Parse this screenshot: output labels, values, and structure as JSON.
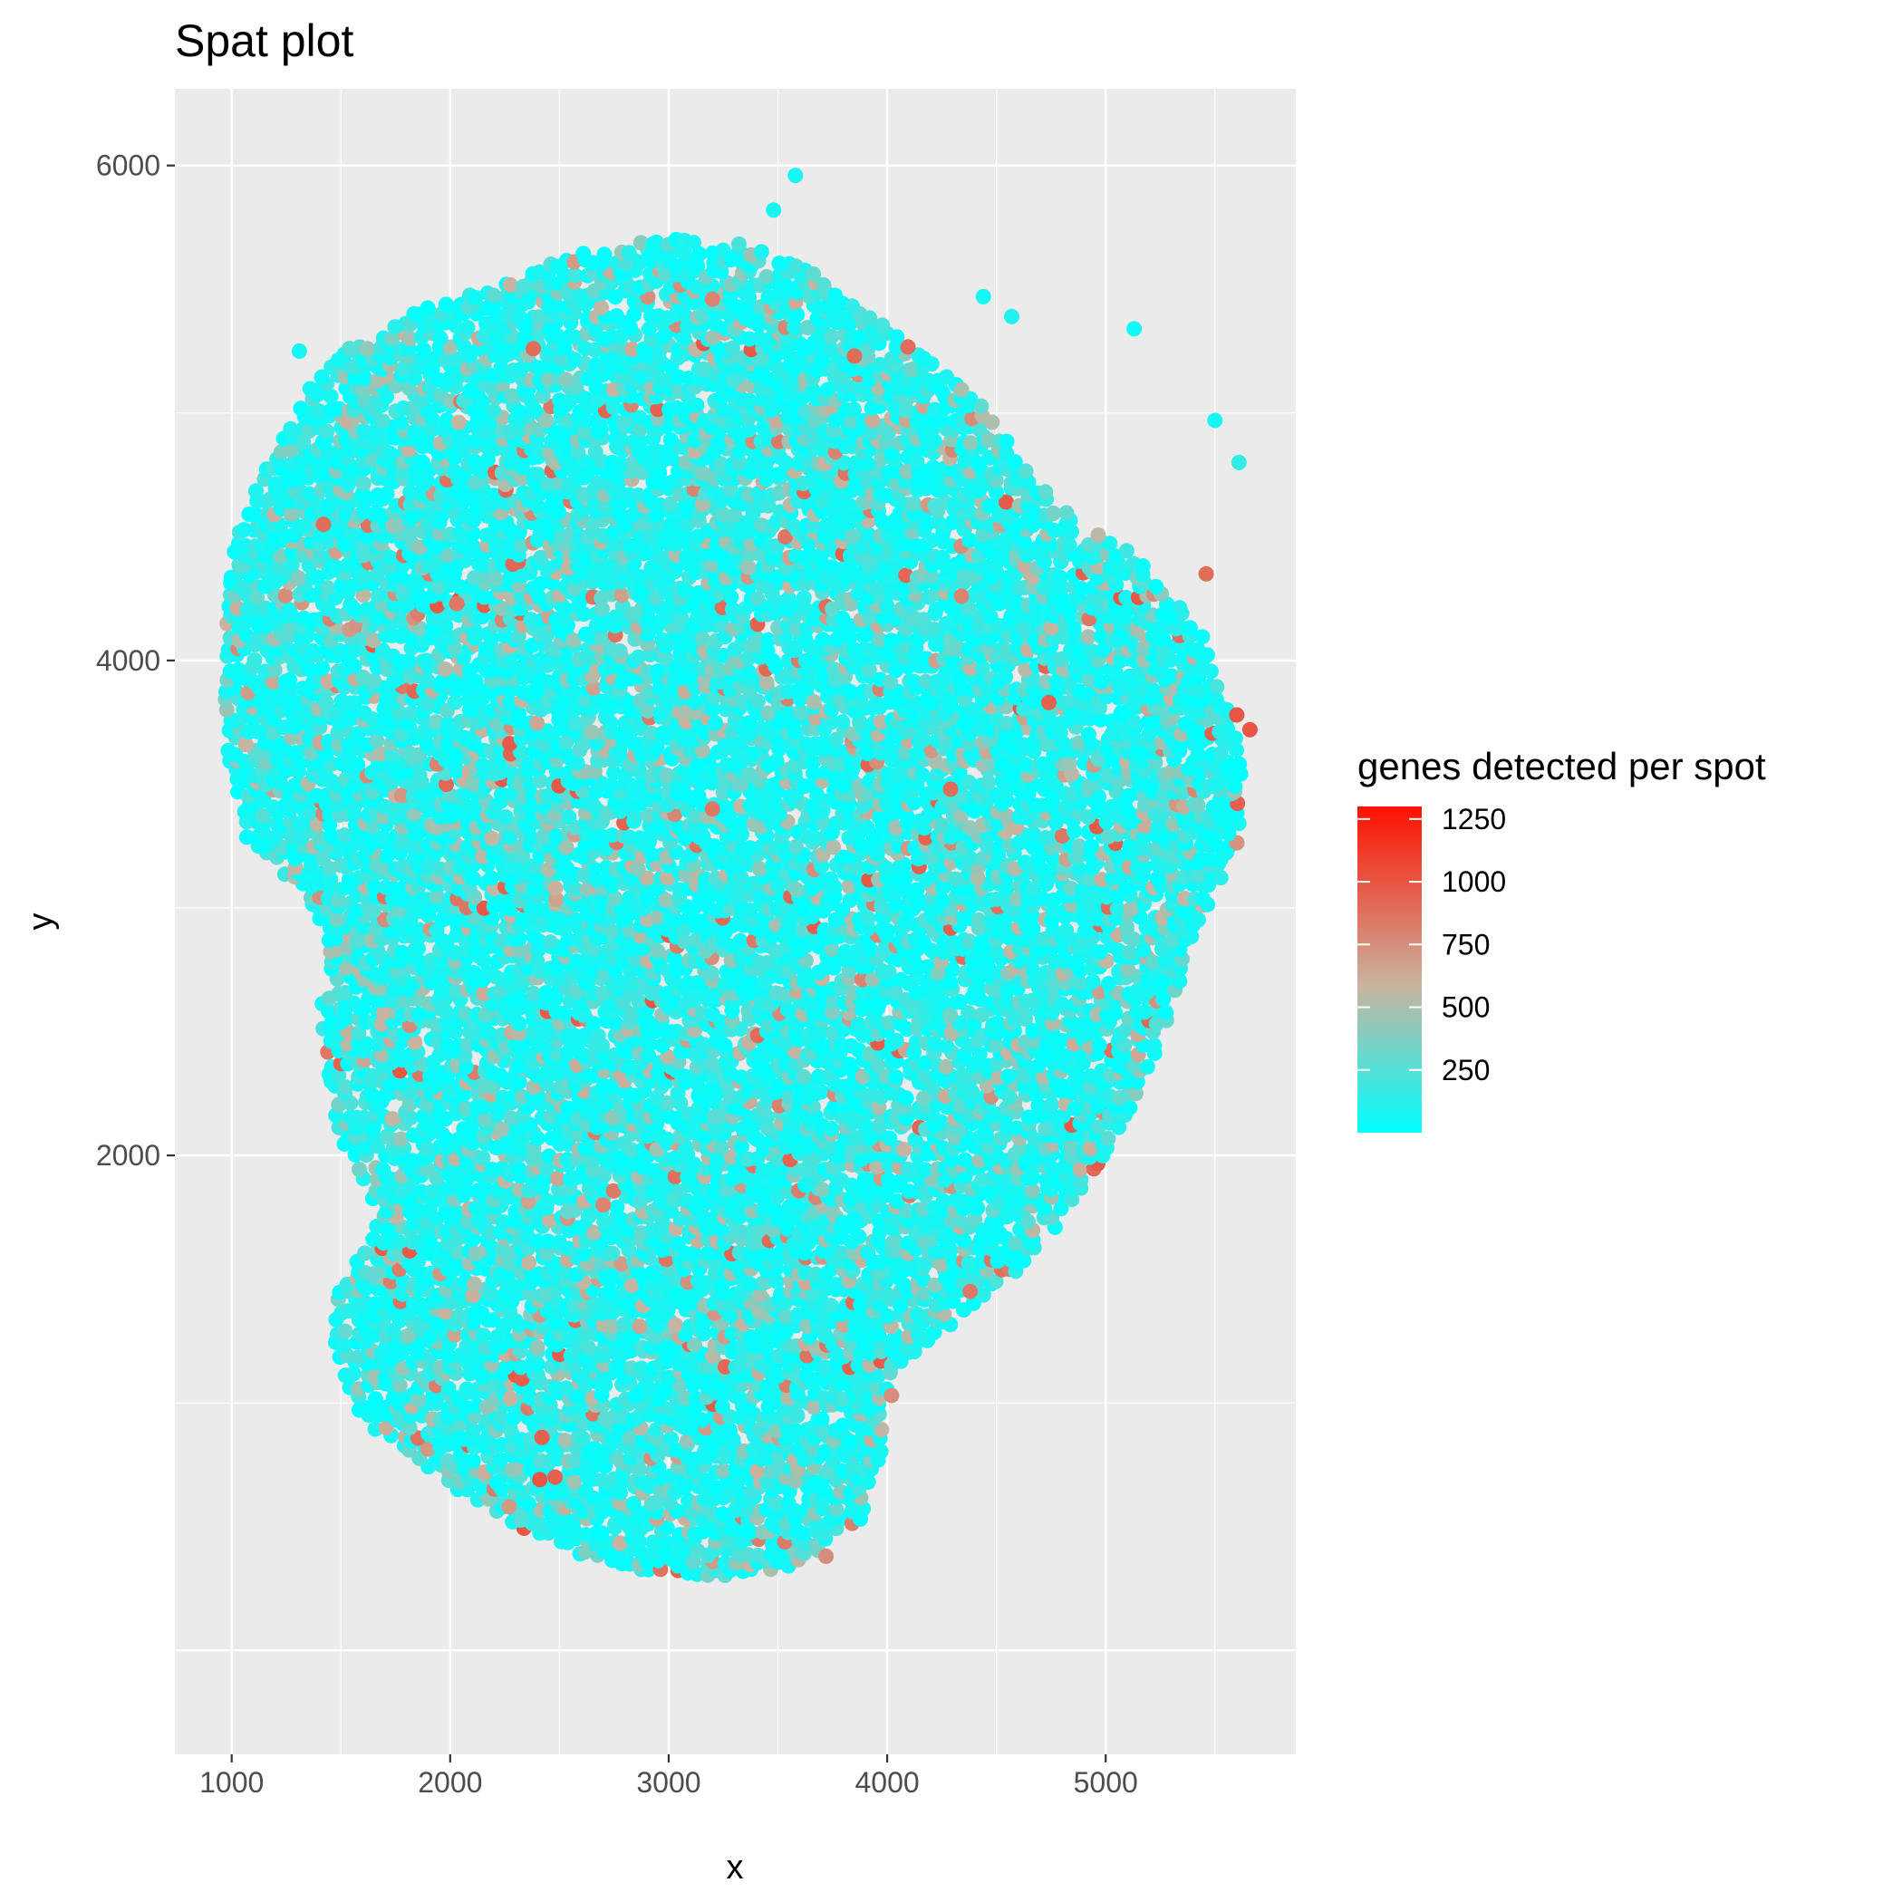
{
  "chart_data": {
    "type": "scatter",
    "title": "Spat plot",
    "xlabel": "x",
    "ylabel": "y",
    "xlim": [
      740,
      5870
    ],
    "ylim": [
      -420,
      6310
    ],
    "x_ticks": [
      1000,
      2000,
      3000,
      4000,
      5000
    ],
    "y_ticks": [
      2000,
      4000,
      6000
    ],
    "x_tick_labels": [
      "1000",
      "2000",
      "3000",
      "4000",
      "5000"
    ],
    "y_tick_labels": [
      "2000",
      "4000",
      "6000"
    ],
    "grid": true,
    "legend": {
      "title": "genes detected per spot",
      "placement": "right",
      "type": "colorbar",
      "min": 0,
      "max": 1300,
      "ticks": [
        250,
        500,
        750,
        1000,
        1250
      ],
      "tick_labels": [
        "250",
        "500",
        "750",
        "1000",
        "1250"
      ],
      "colors": [
        "#00FFFF",
        "#C8B4A0",
        "#FF1100"
      ]
    },
    "tissue_outline": [
      [
        1000,
        4450
      ],
      [
        1070,
        4640
      ],
      [
        1190,
        4840
      ],
      [
        1350,
        5100
      ],
      [
        1560,
        5280
      ],
      [
        1850,
        5410
      ],
      [
        2200,
        5530
      ],
      [
        2600,
        5650
      ],
      [
        3000,
        5710
      ],
      [
        3380,
        5680
      ],
      [
        3660,
        5580
      ],
      [
        3920,
        5400
      ],
      [
        4160,
        5250
      ],
      [
        4420,
        5040
      ],
      [
        4620,
        4820
      ],
      [
        4780,
        4620
      ],
      [
        4960,
        4530
      ],
      [
        5150,
        4420
      ],
      [
        5330,
        4230
      ],
      [
        5480,
        4050
      ],
      [
        5560,
        3830
      ],
      [
        5640,
        3560
      ],
      [
        5600,
        3240
      ],
      [
        5470,
        3020
      ],
      [
        5360,
        2760
      ],
      [
        5250,
        2460
      ],
      [
        5110,
        2190
      ],
      [
        4950,
        1940
      ],
      [
        4790,
        1730
      ],
      [
        4600,
        1540
      ],
      [
        4380,
        1380
      ],
      [
        4170,
        1230
      ],
      [
        4000,
        1050
      ],
      [
        3970,
        780
      ],
      [
        3880,
        530
      ],
      [
        3620,
        350
      ],
      [
        3250,
        280
      ],
      [
        2900,
        320
      ],
      [
        2570,
        390
      ],
      [
        2230,
        540
      ],
      [
        1900,
        720
      ],
      [
        1600,
        930
      ],
      [
        1460,
        1180
      ],
      [
        1490,
        1480
      ],
      [
        1680,
        1740
      ],
      [
        1530,
        2000
      ],
      [
        1420,
        2310
      ],
      [
        1410,
        2640
      ],
      [
        1440,
        2860
      ],
      [
        1350,
        3030
      ],
      [
        1210,
        3160
      ],
      [
        1060,
        3290
      ],
      [
        990,
        3560
      ],
      [
        960,
        3880
      ],
      [
        970,
        4180
      ]
    ],
    "points": [
      {
        "x": 1310,
        "y": 5250,
        "value": 60
      },
      {
        "x": 3580,
        "y": 5960,
        "value": 60
      },
      {
        "x": 3480,
        "y": 5820,
        "value": 80
      },
      {
        "x": 4440,
        "y": 5470,
        "value": 60
      },
      {
        "x": 4570,
        "y": 5390,
        "value": 100
      },
      {
        "x": 5130,
        "y": 5340,
        "value": 40
      },
      {
        "x": 5500,
        "y": 4970,
        "value": 80
      },
      {
        "x": 5610,
        "y": 4800,
        "value": 150
      },
      {
        "x": 5460,
        "y": 4350,
        "value": 900
      },
      {
        "x": 5600,
        "y": 3780,
        "value": 1000
      },
      {
        "x": 5660,
        "y": 3720,
        "value": 1000
      },
      {
        "x": 4740,
        "y": 3830,
        "value": 950
      },
      {
        "x": 2380,
        "y": 5260,
        "value": 900
      },
      {
        "x": 3200,
        "y": 5460,
        "value": 800
      },
      {
        "x": 1420,
        "y": 4550,
        "value": 900
      },
      {
        "x": 2410,
        "y": 690,
        "value": 1000
      },
      {
        "x": 2420,
        "y": 860,
        "value": 950
      },
      {
        "x": 2480,
        "y": 700,
        "value": 950
      },
      {
        "x": 3200,
        "y": 3400,
        "value": 850
      },
      {
        "x": 4380,
        "y": 1450,
        "value": 850
      },
      {
        "x": 4020,
        "y": 1030,
        "value": 750
      },
      {
        "x": 4290,
        "y": 3480,
        "value": 900
      },
      {
        "x": 2030,
        "y": 4230,
        "value": 850
      },
      {
        "x": 3850,
        "y": 5230,
        "value": 900
      },
      {
        "x": 4340,
        "y": 4260,
        "value": 800
      },
      {
        "x": 2270,
        "y": 580,
        "value": 700
      },
      {
        "x": 3720,
        "y": 380,
        "value": 750
      },
      {
        "x": 2700,
        "y": 1800,
        "value": 800
      }
    ]
  }
}
